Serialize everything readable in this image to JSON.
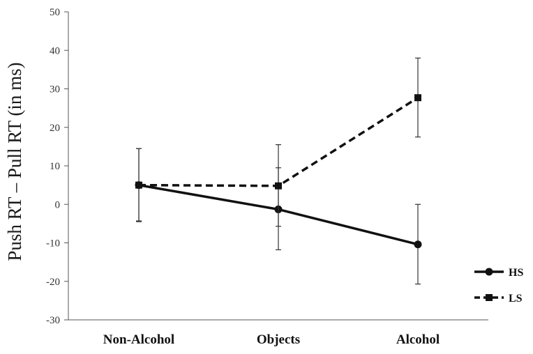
{
  "chart_data": {
    "type": "line",
    "title": "",
    "xlabel": "",
    "ylabel": "Push RT – Pull RT (in ms)",
    "categories": [
      "Non-Alcohol",
      "Objects",
      "Alcohol"
    ],
    "ylim": [
      -30,
      50
    ],
    "yticks": [
      50,
      40,
      30,
      20,
      10,
      0,
      -10,
      -20,
      -30
    ],
    "ytick_labels": [
      "50",
      "40",
      "30",
      "20",
      "10",
      "0",
      "-10",
      "-20",
      "-30"
    ],
    "grid": false,
    "legend_position": "right",
    "series": [
      {
        "name": "HS",
        "values": [
          5.0,
          -1.3,
          -10.4
        ],
        "error_upper": [
          14.5,
          9.5,
          0.0
        ],
        "error_lower": [
          -4.5,
          -11.8,
          -20.7
        ],
        "line_style": "solid",
        "marker": "circle",
        "color": "#111111"
      },
      {
        "name": "LS",
        "values": [
          5.0,
          4.8,
          27.7
        ],
        "error_upper": [
          14.5,
          15.5,
          38.0
        ],
        "error_lower": [
          -4.3,
          -5.7,
          17.5
        ],
        "line_style": "dashed",
        "marker": "square",
        "color": "#111111"
      }
    ]
  }
}
